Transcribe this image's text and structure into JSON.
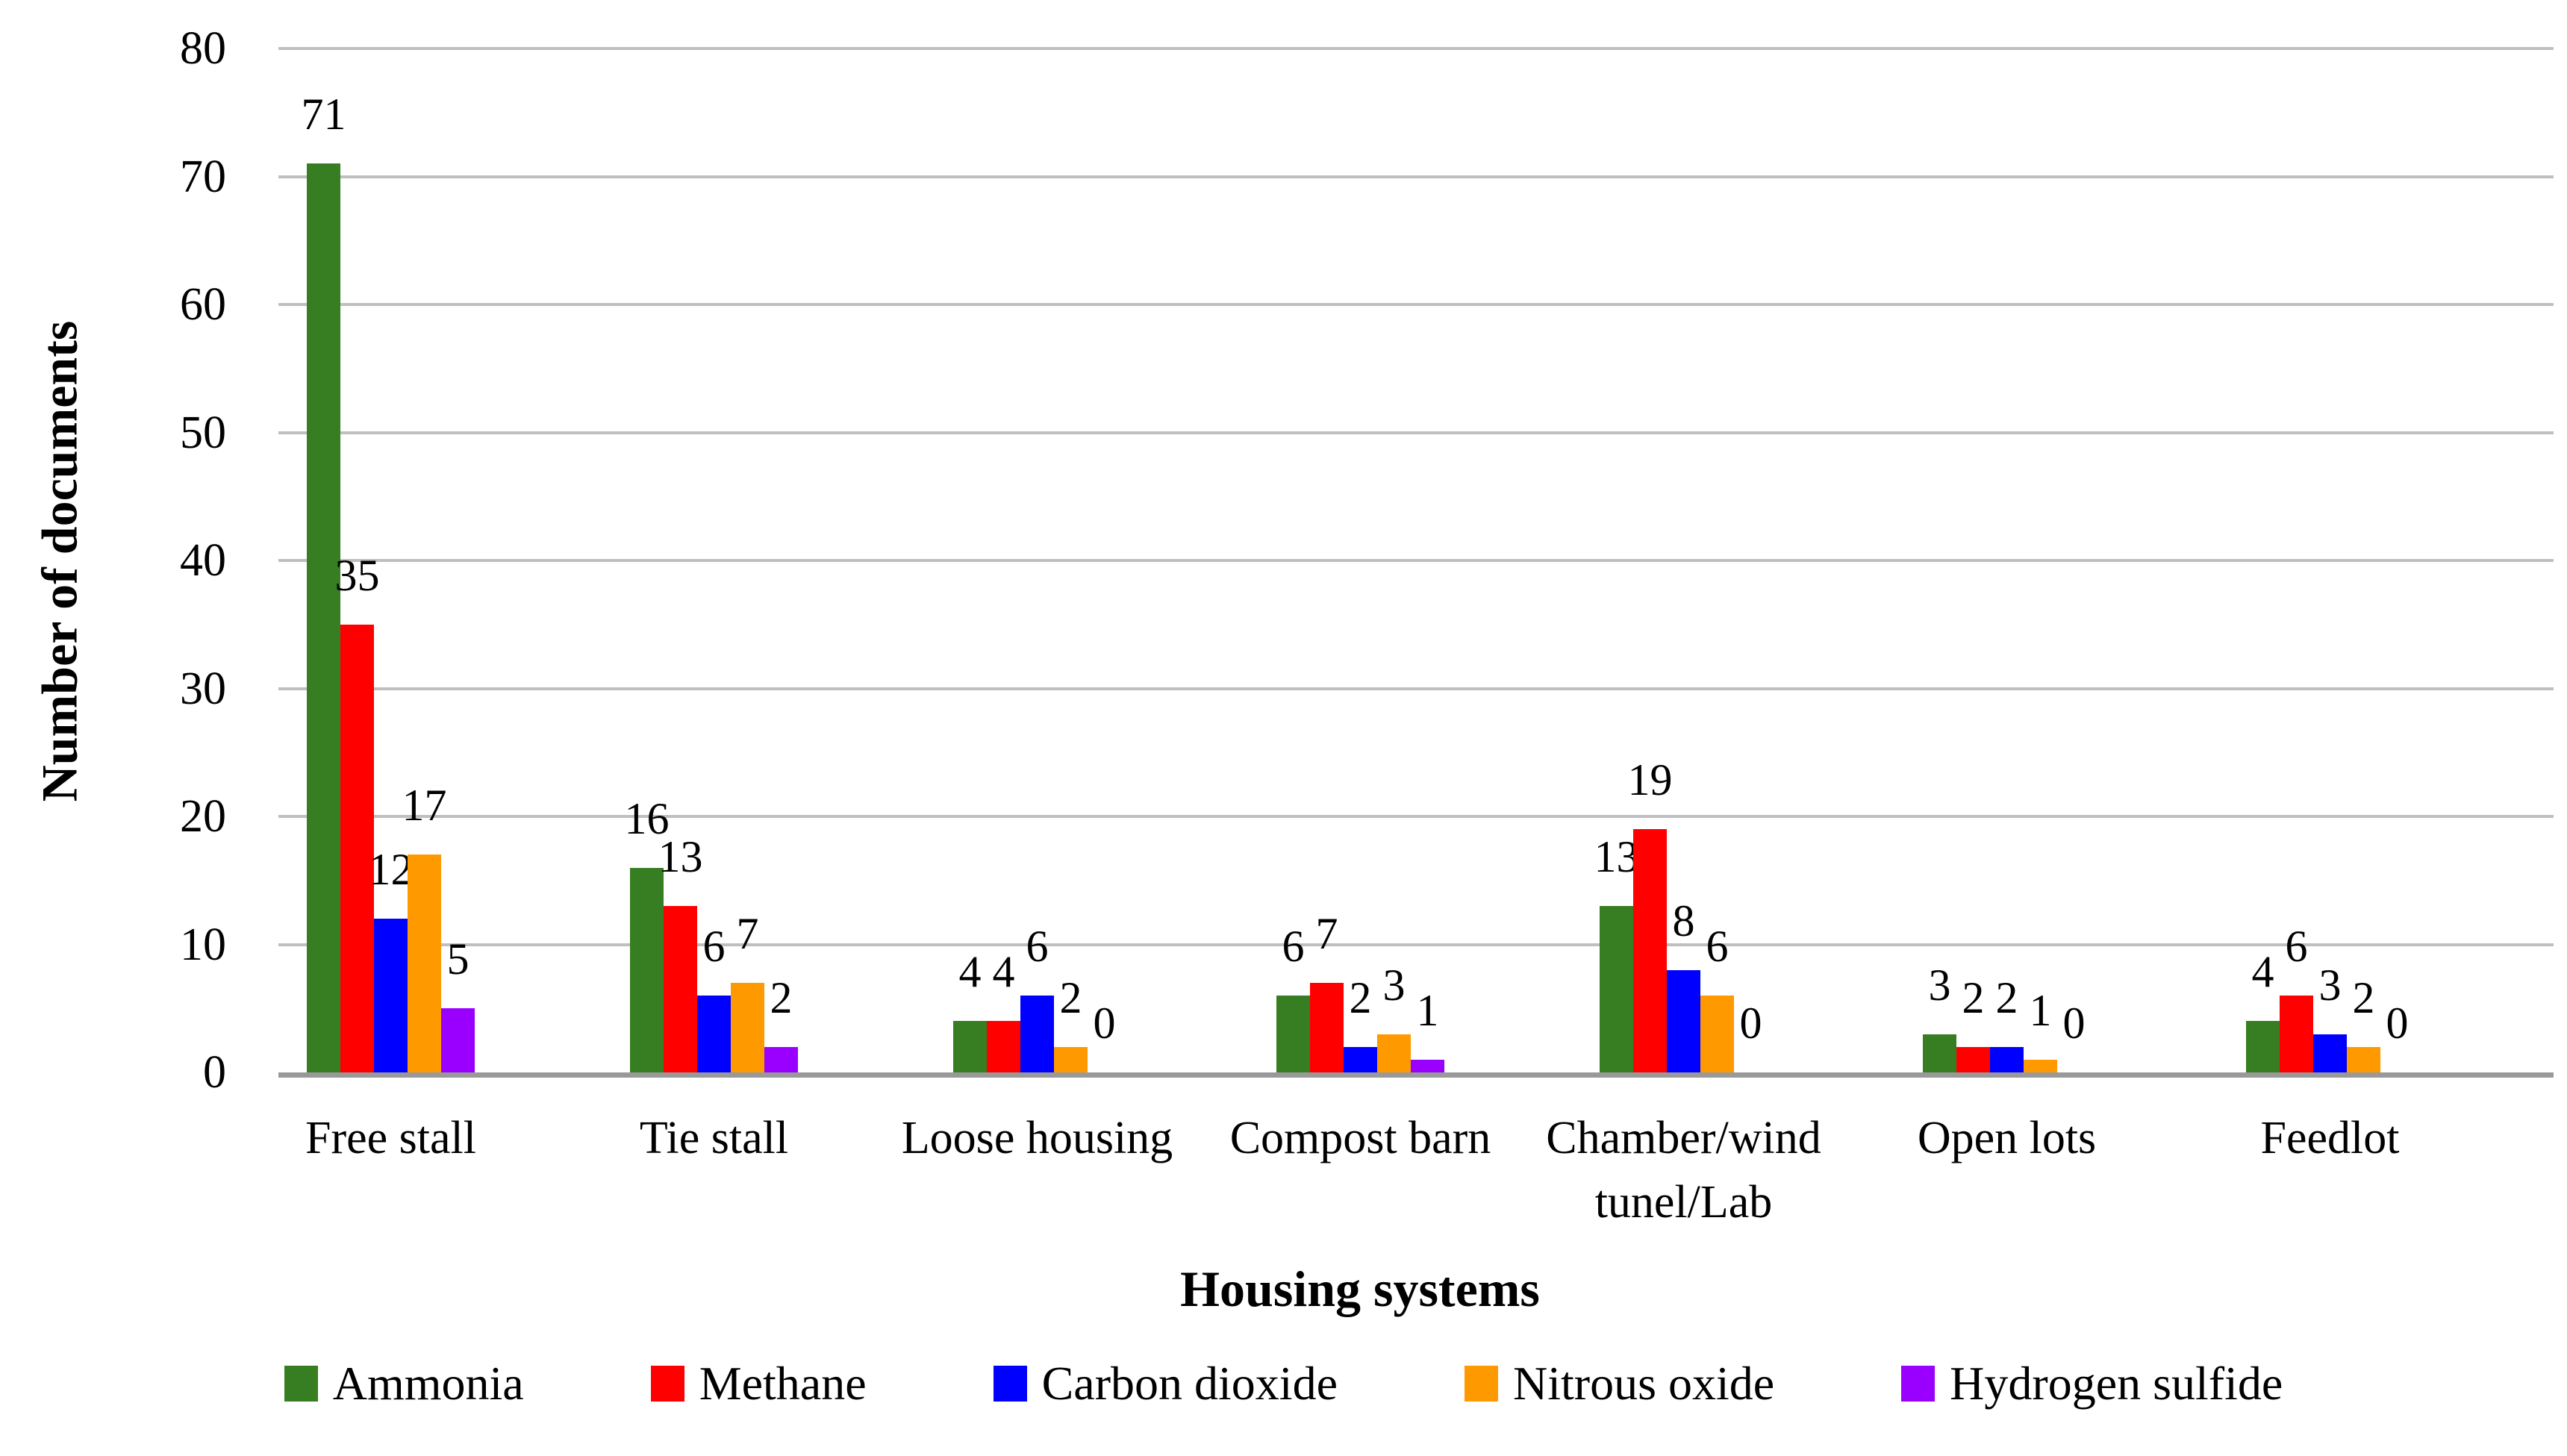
{
  "chart_data": {
    "type": "bar",
    "title": "",
    "xlabel": "Housing systems",
    "ylabel": "Number of documents",
    "ylim": [
      0,
      80
    ],
    "yticks": [
      0,
      10,
      20,
      30,
      40,
      50,
      60,
      70,
      80
    ],
    "grid": "horizontal",
    "gridline_color": "#BFBFBF",
    "axis_line_color": "#999999",
    "legend_position": "bottom",
    "data_labels": true,
    "categories": [
      "Free stall",
      "Tie stall",
      "Loose housing",
      "Compost barn",
      "Chamber/wind\ntunel/Lab",
      "Open lots",
      "Feedlot"
    ],
    "series": [
      {
        "name": "Ammonia",
        "color": "#377D22",
        "values": [
          71,
          16,
          4,
          6,
          13,
          3,
          4
        ]
      },
      {
        "name": "Methane",
        "color": "#FF0000",
        "values": [
          35,
          13,
          4,
          7,
          19,
          2,
          6
        ]
      },
      {
        "name": "Carbon dioxide",
        "color": "#0000FF",
        "values": [
          12,
          6,
          6,
          2,
          8,
          2,
          3
        ]
      },
      {
        "name": "Nitrous oxide",
        "color": "#FF9900",
        "values": [
          17,
          7,
          2,
          3,
          6,
          1,
          2
        ]
      },
      {
        "name": "Hydrogen sulfide",
        "color": "#9900FF",
        "values": [
          5,
          2,
          0,
          1,
          0,
          0,
          0
        ]
      }
    ]
  }
}
